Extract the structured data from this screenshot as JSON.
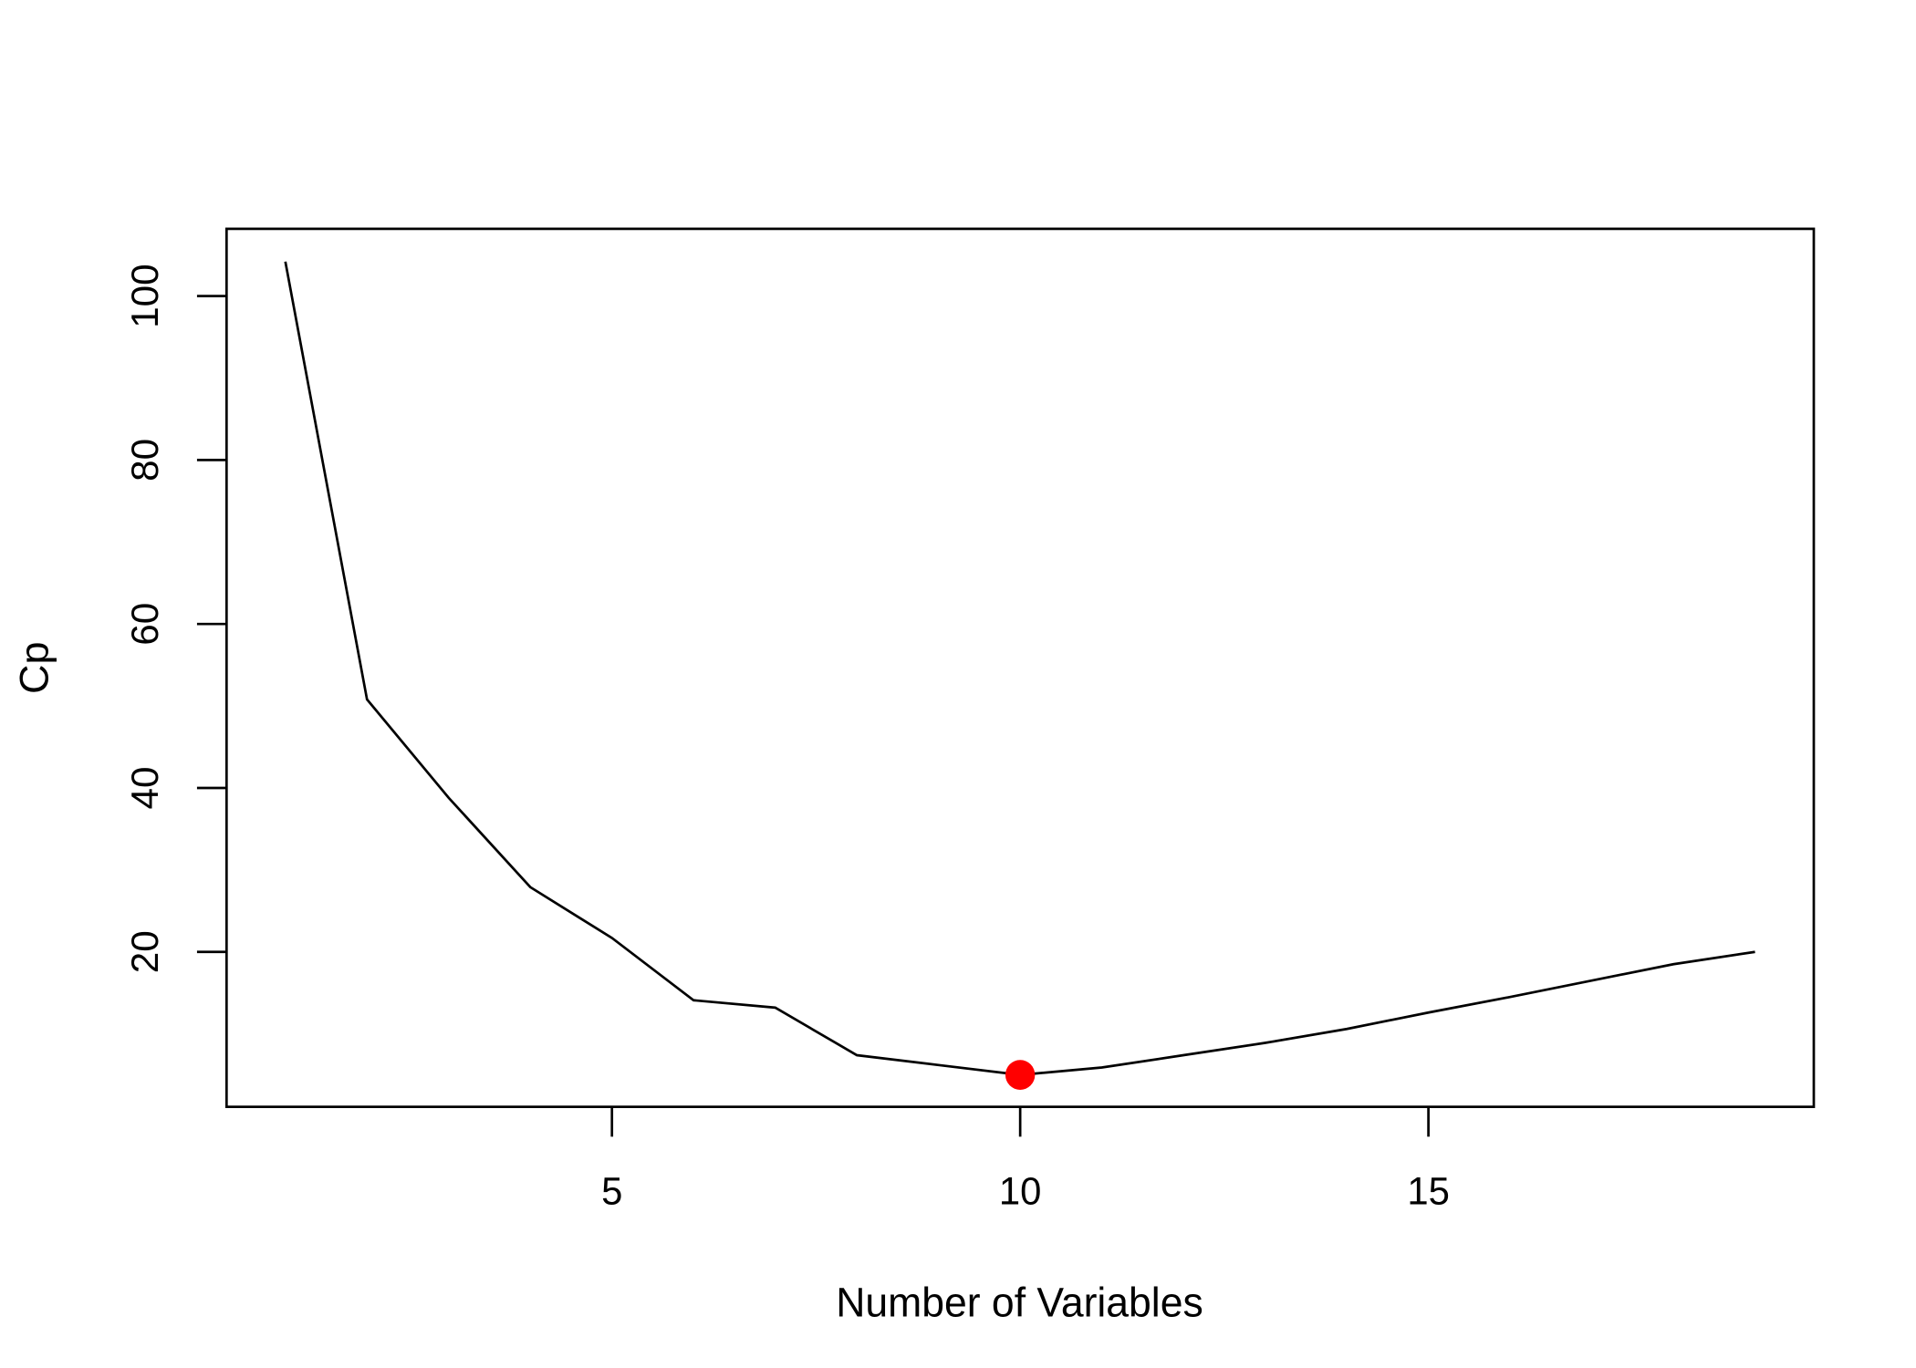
{
  "chart_data": {
    "type": "line",
    "x_label": "Number of Variables",
    "y_label": "Cp",
    "x": [
      1,
      2,
      3,
      4,
      5,
      6,
      7,
      8,
      9,
      10,
      11,
      12,
      13,
      14,
      15,
      16,
      17,
      18,
      19
    ],
    "series": [
      {
        "color": "#000000",
        "values": [
          104.2,
          50.8,
          38.8,
          27.9,
          21.7,
          14.1,
          13.2,
          7.4,
          6.2,
          5.0,
          5.9,
          7.4,
          8.9,
          10.6,
          12.6,
          14.5,
          16.5,
          18.5,
          20.0
        ]
      }
    ],
    "highlight": {
      "x": 10,
      "y": 5.0,
      "color": "#ff0000"
    },
    "xlim": [
      0.28,
      19.72
    ],
    "ylim": [
      1.1,
      108.2
    ],
    "xticks": [
      5,
      10,
      15
    ],
    "yticks": [
      20,
      40,
      60,
      80,
      100
    ]
  }
}
